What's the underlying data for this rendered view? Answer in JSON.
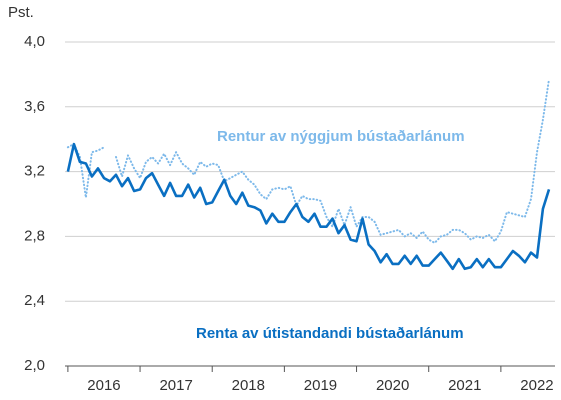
{
  "chart_data": {
    "type": "line",
    "y_label": "Pst.",
    "x": [
      2016,
      2016.083,
      2016.167,
      2016.25,
      2016.333,
      2016.417,
      2016.5,
      2016.583,
      2016.667,
      2016.75,
      2016.833,
      2016.917,
      2017,
      2017.083,
      2017.167,
      2017.25,
      2017.333,
      2017.417,
      2017.5,
      2017.583,
      2017.667,
      2017.75,
      2017.833,
      2017.917,
      2018,
      2018.083,
      2018.167,
      2018.25,
      2018.333,
      2018.417,
      2018.5,
      2018.583,
      2018.667,
      2018.75,
      2018.833,
      2018.917,
      2019,
      2019.083,
      2019.167,
      2019.25,
      2019.333,
      2019.417,
      2019.5,
      2019.583,
      2019.667,
      2019.75,
      2019.833,
      2019.917,
      2020,
      2020.083,
      2020.167,
      2020.25,
      2020.333,
      2020.417,
      2020.5,
      2020.583,
      2020.667,
      2020.75,
      2020.833,
      2020.917,
      2021,
      2021.083,
      2021.167,
      2021.25,
      2021.333,
      2021.417,
      2021.5,
      2021.583,
      2021.667,
      2021.75,
      2021.833,
      2021.917,
      2022,
      2022.083,
      2022.167,
      2022.25,
      2022.333,
      2022.417,
      2022.5,
      2022.583,
      2022.667
    ],
    "series": [
      {
        "name": "Rentur av nýggjum bústaðarlánum",
        "color": "#7db9ea",
        "dash": "dotted",
        "values": [
          3.35,
          3.37,
          3.29,
          3.04,
          3.32,
          3.33,
          3.35,
          null,
          3.29,
          3.17,
          3.3,
          3.22,
          3.16,
          3.26,
          3.29,
          3.25,
          3.31,
          3.24,
          3.32,
          3.25,
          3.22,
          3.18,
          3.26,
          3.23,
          3.25,
          3.24,
          3.14,
          3.16,
          3.18,
          3.2,
          3.15,
          3.12,
          3.06,
          3.03,
          3.09,
          3.1,
          3.09,
          3.11,
          2.99,
          3.05,
          3.03,
          3.03,
          3.02,
          2.92,
          2.86,
          2.97,
          2.87,
          2.98,
          2.86,
          2.92,
          2.92,
          2.89,
          2.81,
          2.82,
          2.83,
          2.84,
          2.8,
          2.82,
          2.79,
          2.83,
          2.78,
          2.76,
          2.8,
          2.81,
          2.84,
          2.84,
          2.82,
          2.78,
          2.8,
          2.79,
          2.81,
          2.77,
          2.83,
          2.95,
          2.94,
          2.93,
          2.92,
          3.03,
          3.32,
          3.52,
          3.77
        ]
      },
      {
        "name": "Renta av útistandandi bústaðarlánum",
        "color": "#0a6fc2",
        "dash": "solid",
        "values": [
          3.2,
          3.37,
          3.26,
          3.25,
          3.17,
          3.22,
          3.16,
          3.14,
          3.18,
          3.11,
          3.16,
          3.08,
          3.09,
          3.16,
          3.19,
          3.12,
          3.05,
          3.13,
          3.05,
          3.05,
          3.12,
          3.04,
          3.1,
          3.0,
          3.01,
          3.08,
          3.15,
          3.05,
          3.0,
          3.07,
          2.99,
          2.98,
          2.96,
          2.88,
          2.94,
          2.89,
          2.89,
          2.95,
          3.0,
          2.92,
          2.89,
          2.94,
          2.86,
          2.86,
          2.91,
          2.82,
          2.87,
          2.78,
          2.77,
          2.91,
          2.75,
          2.71,
          2.64,
          2.69,
          2.63,
          2.63,
          2.68,
          2.63,
          2.68,
          2.62,
          2.62,
          2.66,
          2.7,
          2.65,
          2.6,
          2.66,
          2.6,
          2.61,
          2.66,
          2.61,
          2.66,
          2.61,
          2.61,
          2.66,
          2.71,
          2.68,
          2.64,
          2.7,
          2.67,
          2.97,
          3.09
        ]
      }
    ],
    "xlim": [
      2015.96,
      2022.75
    ],
    "xticks": [
      {
        "value": 2016.5,
        "label": "2016"
      },
      {
        "value": 2017.5,
        "label": "2017"
      },
      {
        "value": 2018.5,
        "label": "2018"
      },
      {
        "value": 2019.5,
        "label": "2019"
      },
      {
        "value": 2020.5,
        "label": "2020"
      },
      {
        "value": 2021.5,
        "label": "2021"
      },
      {
        "value": 2022.5,
        "label": "2022"
      }
    ],
    "ylim": [
      2.0,
      4.0
    ],
    "yticks": [
      {
        "value": 2.0,
        "label": "2,0"
      },
      {
        "value": 2.4,
        "label": "2,4"
      },
      {
        "value": 2.8,
        "label": "2,8"
      },
      {
        "value": 3.2,
        "label": "3,2"
      },
      {
        "value": 3.6,
        "label": "3,6"
      },
      {
        "value": 4.0,
        "label": "4,0"
      }
    ],
    "grid": true
  }
}
